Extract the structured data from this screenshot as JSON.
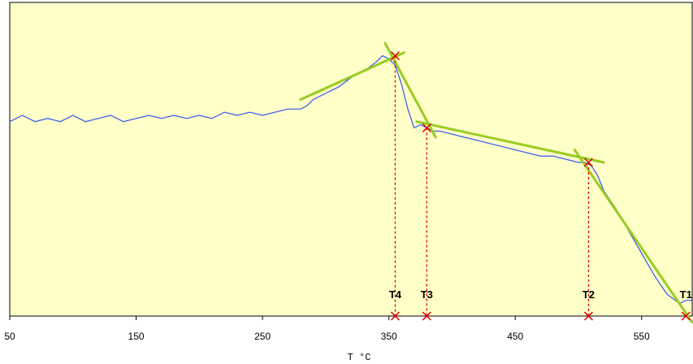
{
  "chart_data": {
    "type": "line",
    "title": "",
    "xlabel": "T °C",
    "ylabel": "",
    "xlim": [
      50,
      590
    ],
    "ylim": [
      0,
      1
    ],
    "grid": false,
    "background_color": "#ffffc8",
    "xticks": [
      50,
      150,
      250,
      350,
      450,
      550
    ],
    "xtick_labels": [
      "50",
      "150",
      "250",
      "350",
      "450",
      "550"
    ],
    "series": [
      {
        "color": "#3355ee",
        "x": [
          50,
          60,
          70,
          80,
          90,
          100,
          110,
          120,
          130,
          140,
          150,
          160,
          170,
          180,
          190,
          200,
          210,
          220,
          230,
          240,
          250,
          260,
          270,
          280,
          285,
          290,
          300,
          310,
          320,
          330,
          340,
          345,
          350,
          355,
          360,
          365,
          370,
          375,
          380,
          385,
          390,
          400,
          410,
          420,
          430,
          440,
          450,
          460,
          470,
          480,
          490,
          500,
          505,
          510,
          515,
          520,
          530,
          540,
          550,
          560,
          570,
          580,
          585,
          590
        ],
        "y": [
          0.62,
          0.64,
          0.62,
          0.63,
          0.62,
          0.64,
          0.62,
          0.63,
          0.64,
          0.62,
          0.63,
          0.64,
          0.63,
          0.64,
          0.63,
          0.64,
          0.63,
          0.65,
          0.64,
          0.65,
          0.64,
          0.65,
          0.66,
          0.66,
          0.67,
          0.69,
          0.71,
          0.73,
          0.76,
          0.78,
          0.81,
          0.83,
          0.82,
          0.8,
          0.74,
          0.66,
          0.6,
          0.61,
          0.6,
          0.59,
          0.59,
          0.58,
          0.57,
          0.56,
          0.55,
          0.54,
          0.53,
          0.52,
          0.51,
          0.51,
          0.5,
          0.49,
          0.49,
          0.48,
          0.45,
          0.4,
          0.34,
          0.27,
          0.2,
          0.13,
          0.07,
          0.04,
          0.05,
          0.05
        ]
      }
    ],
    "fit_lines": [
      {
        "color": "#99cc22",
        "x": [
          280,
          362
        ],
        "y": [
          0.69,
          0.84
        ]
      },
      {
        "color": "#99cc22",
        "x": [
          347,
          387
        ],
        "y": [
          0.87,
          0.57
        ]
      },
      {
        "color": "#99cc22",
        "x": [
          372,
          520
        ],
        "y": [
          0.62,
          0.49
        ]
      },
      {
        "color": "#99cc22",
        "x": [
          497,
          590
        ],
        "y": [
          0.53,
          -0.02
        ]
      }
    ],
    "markers": [
      {
        "label": "T4",
        "x": 355,
        "y": 0.83
      },
      {
        "label": "T3",
        "x": 380,
        "y": 0.6
      },
      {
        "label": "T2",
        "x": 508,
        "y": 0.49
      },
      {
        "label": "T1",
        "x": 585,
        "y": 0.0
      }
    ],
    "marker_color": "#dd0000",
    "fit_color": "#99cc22"
  }
}
